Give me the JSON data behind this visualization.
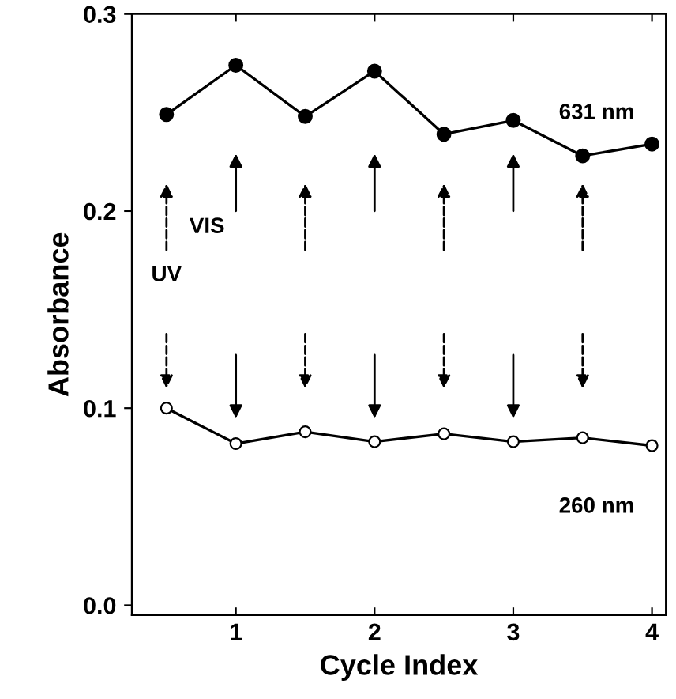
{
  "chart_data": {
    "type": "line",
    "xlabel": "Cycle Index",
    "ylabel": "Absorbance",
    "x": [
      0.5,
      1,
      1.5,
      2,
      2.5,
      3,
      3.5,
      4
    ],
    "series": [
      {
        "name": "631 nm",
        "color": "#000000",
        "values": [
          0.249,
          0.274,
          0.248,
          0.271,
          0.239,
          0.246,
          0.228,
          0.234
        ]
      },
      {
        "name": "260 nm",
        "color": "#000000",
        "values": [
          0.1,
          0.082,
          0.088,
          0.083,
          0.087,
          0.083,
          0.085,
          0.081
        ]
      }
    ],
    "annotations": [
      "UV",
      "VIS"
    ],
    "xlim": [
      0.25,
      4.1
    ],
    "ylim": [
      -0.005,
      0.3
    ],
    "xticks": [
      1,
      2,
      3,
      4
    ],
    "yticks": [
      {
        "value": 0,
        "label": "0.0"
      },
      {
        "value": 0.1,
        "label": "0.1"
      },
      {
        "value": 0.2,
        "label": "0.2"
      },
      {
        "value": 0.3,
        "label": "0.3"
      }
    ],
    "marker": "circle",
    "grid": false
  }
}
